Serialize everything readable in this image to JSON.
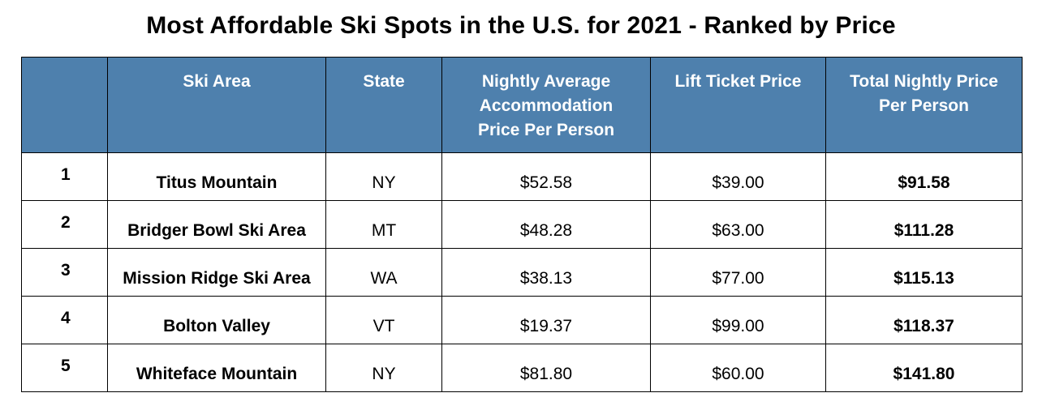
{
  "title": "Most Affordable Ski Spots in the U.S. for 2021 - Ranked by Price",
  "colors": {
    "header_background": "#4e80ad",
    "header_text": "#ffffff",
    "border": "#000000"
  },
  "table": {
    "headers": {
      "rank": "",
      "ski_area": "Ski Area",
      "state": "State",
      "accommodation_line1": "Nightly Average",
      "accommodation_line2": "Accommodation",
      "accommodation_line3": "Price Per Person",
      "lift_ticket": "Lift Ticket Price",
      "total_line1": "Total Nightly Price",
      "total_line2": "Per Person"
    },
    "rows": [
      {
        "rank": "1",
        "ski_area": "Titus Mountain",
        "state": "NY",
        "accommodation": "$52.58",
        "lift_ticket": "$39.00",
        "total": "$91.58"
      },
      {
        "rank": "2",
        "ski_area": "Bridger Bowl Ski Area",
        "state": "MT",
        "accommodation": "$48.28",
        "lift_ticket": "$63.00",
        "total": "$111.28"
      },
      {
        "rank": "3",
        "ski_area": "Mission Ridge Ski Area",
        "state": "WA",
        "accommodation": "$38.13",
        "lift_ticket": "$77.00",
        "total": "$115.13"
      },
      {
        "rank": "4",
        "ski_area": "Bolton Valley",
        "state": "VT",
        "accommodation": "$19.37",
        "lift_ticket": "$99.00",
        "total": "$118.37"
      },
      {
        "rank": "5",
        "ski_area": "Whiteface Mountain",
        "state": "NY",
        "accommodation": "$81.80",
        "lift_ticket": "$60.00",
        "total": "$141.80"
      }
    ]
  }
}
